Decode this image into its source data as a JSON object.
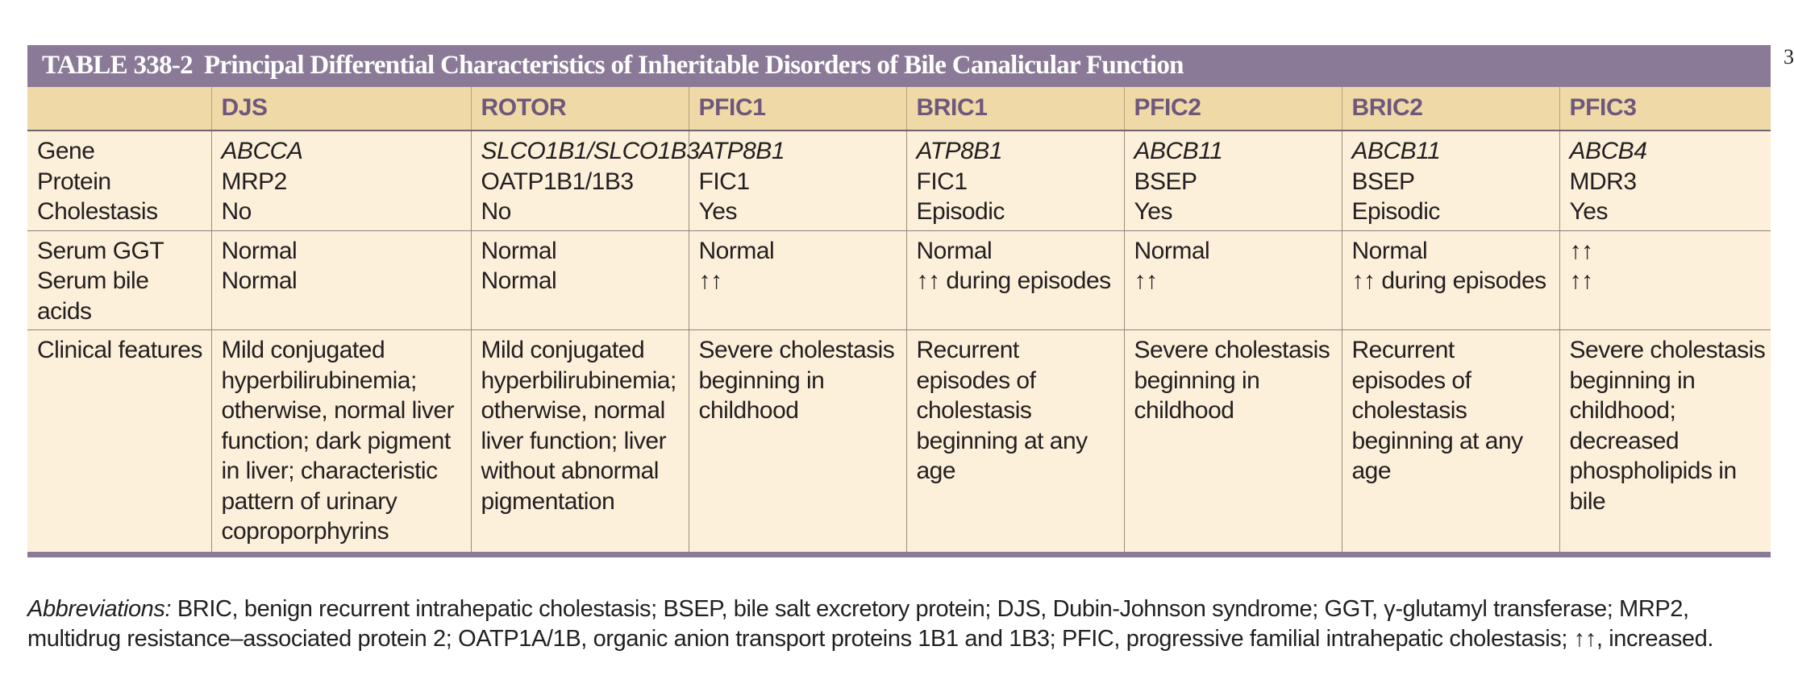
{
  "page_marker": "3",
  "table": {
    "number": "TABLE 338-2",
    "title": "Principal Differential Characteristics of Inheritable Disorders of Bile Canalicular Function",
    "columns": [
      "",
      "DJS",
      "ROTOR",
      "PFIC1",
      "BRIC1",
      "PFIC2",
      "BRIC2",
      "PFIC3"
    ],
    "rows": [
      {
        "label": "Gene",
        "cells": [
          "ABCCA",
          "SLCO1B1/SLCO1B3",
          "ATP8B1",
          "ATP8B1",
          "ABCB11",
          "ABCB11",
          "ABCB4"
        ]
      },
      {
        "label": "Protein",
        "cells": [
          "MRP2",
          "OATP1B1/1B3",
          "FIC1",
          "FIC1",
          "BSEP",
          "BSEP",
          "MDR3"
        ]
      },
      {
        "label": "Cholestasis",
        "cells": [
          "No",
          "No",
          "Yes",
          "Episodic",
          "Yes",
          "Episodic",
          "Yes"
        ]
      },
      {
        "label": "Serum GGT",
        "cells": [
          "Normal",
          "Normal",
          "Normal",
          "Normal",
          "Normal",
          "Normal",
          "↑↑"
        ]
      },
      {
        "label": "Serum bile acids",
        "cells": [
          "Normal",
          "Normal",
          "↑↑",
          "↑↑ during episodes",
          "↑↑",
          "↑↑ during episodes",
          "↑↑"
        ]
      },
      {
        "label": "Clinical features",
        "cells": [
          "Mild conjugated hyperbilirubinemia; otherwise, normal liver function; dark pigment in liver; characteristic pattern of urinary coproporphyrins",
          "Mild conjugated hyperbilirubinemia; otherwise, normal liver function; liver without abnormal pigmentation",
          "Severe cholestasis beginning in childhood",
          "Recurrent episodes of cholestasis beginning at any age",
          "Severe cholestasis beginning in childhood",
          "Recurrent episodes of cholestasis beginning at any age",
          "Severe cholestasis beginning in childhood; decreased phospholipids in bile"
        ]
      }
    ]
  },
  "footnote": {
    "lead": "Abbreviations:",
    "text": "BRIC, benign recurrent intrahepatic cholestasis; BSEP, bile salt excretory protein; DJS, Dubin-Johnson syndrome; GGT, γ-glutamyl transferase; MRP2, multidrug resistance–associated protein 2; OATP1A/1B, organic anion transport proteins 1B1 and 1B3; PFIC, progressive familial intrahepatic cholestasis; ↑↑, increased."
  }
}
